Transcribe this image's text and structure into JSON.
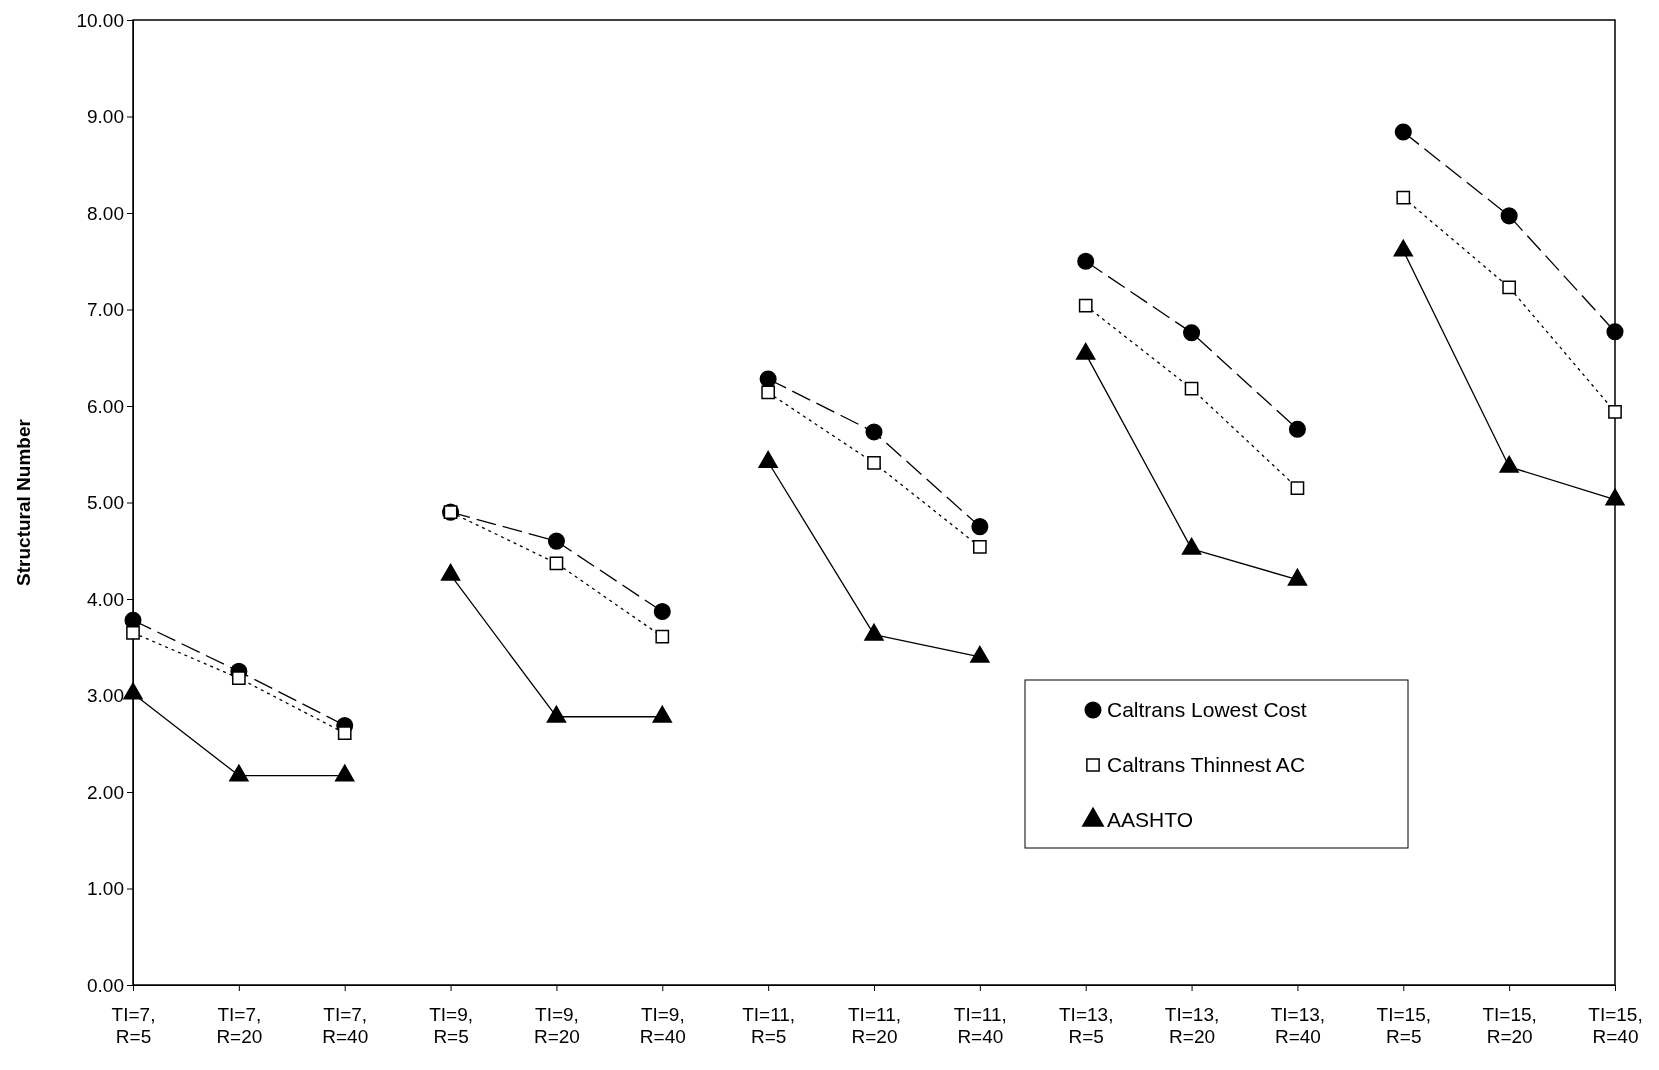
{
  "chart_data": {
    "type": "line",
    "ylabel": "Structural Number",
    "categories": [
      "TI=7, R=5",
      "TI=7, R=20",
      "TI=7, R=40",
      "TI=9, R=5",
      "TI=9, R=20",
      "TI=9, R=40",
      "TI=11, R=5",
      "TI=11, R=20",
      "TI=11, R=40",
      "TI=13, R=5",
      "TI=13, R=20",
      "TI=13, R=40",
      "TI=15, R=5",
      "TI=15, R=20",
      "TI=15, R=40"
    ],
    "ylim": [
      0,
      10
    ],
    "yticks": [
      {
        "value": 0,
        "label": "0.00"
      },
      {
        "value": 1,
        "label": "1.00"
      },
      {
        "value": 2,
        "label": "2.00"
      },
      {
        "value": 3,
        "label": "3.00"
      },
      {
        "value": 4,
        "label": "4.00"
      },
      {
        "value": 5,
        "label": "5.00"
      },
      {
        "value": 6,
        "label": "6.00"
      },
      {
        "value": 7,
        "label": "7.00"
      },
      {
        "value": 8,
        "label": "8.00"
      },
      {
        "value": 9,
        "label": "9.00"
      },
      {
        "value": 10,
        "label": "10.00"
      }
    ],
    "legend": "right",
    "series": [
      {
        "name": "Caltrans Lowest Cost",
        "color": "#000000",
        "marker": "circle",
        "line_style": "dashed",
        "x": [
          "TI=7, R=5",
          "TI=7, R=20",
          "TI=7, R=40"
        ],
        "values": [
          3.78,
          3.25,
          2.69
        ]
      },
      {
        "color": "#000000",
        "marker": "circle",
        "line_style": "dashed",
        "x": [
          "TI=9, R=5",
          "TI=9, R=20",
          "TI=9, R=40"
        ],
        "values": [
          4.9,
          4.6,
          3.87
        ]
      },
      {
        "color": "#000000",
        "marker": "circle",
        "line_style": "dashed",
        "x": [
          "TI=11, R=5",
          "TI=11, R=20",
          "TI=11, R=40"
        ],
        "values": [
          6.28,
          5.73,
          4.75
        ]
      },
      {
        "color": "#000000",
        "marker": "circle",
        "line_style": "dashed",
        "x": [
          "TI=13, R=5",
          "TI=13, R=20",
          "TI=13, R=40"
        ],
        "values": [
          7.5,
          6.76,
          5.76
        ]
      },
      {
        "color": "#000000",
        "marker": "circle",
        "line_style": "dashed",
        "x": [
          "TI=15, R=5",
          "TI=15, R=20",
          "TI=15, R=40"
        ],
        "values": [
          8.84,
          7.97,
          6.77
        ]
      },
      {
        "name": "Caltrans Thinnest AC",
        "color": "#000000",
        "marker": "square",
        "line_style": "dotted",
        "x": [
          "TI=7, R=5",
          "TI=7, R=20",
          "TI=7, R=40"
        ],
        "values": [
          3.65,
          3.18,
          2.61
        ]
      },
      {
        "color": "#000000",
        "marker": "square",
        "line_style": "dotted",
        "x": [
          "TI=9, R=5",
          "TI=9, R=20",
          "TI=9, R=40"
        ],
        "values": [
          4.9,
          4.37,
          3.61
        ]
      },
      {
        "color": "#000000",
        "marker": "square",
        "line_style": "dotted",
        "x": [
          "TI=11, R=5",
          "TI=11, R=20",
          "TI=11, R=40"
        ],
        "values": [
          6.14,
          5.41,
          4.54
        ]
      },
      {
        "color": "#000000",
        "marker": "square",
        "line_style": "dotted",
        "x": [
          "TI=13, R=5",
          "TI=13, R=20",
          "TI=13, R=40"
        ],
        "values": [
          7.04,
          6.18,
          5.15
        ]
      },
      {
        "color": "#000000",
        "marker": "square",
        "line_style": "dotted",
        "x": [
          "TI=15, R=5",
          "TI=15, R=20",
          "TI=15, R=40"
        ],
        "values": [
          8.16,
          7.23,
          5.94
        ]
      },
      {
        "name": "AASHTO",
        "color": "#000000",
        "marker": "triangle",
        "line_style": "solid",
        "x": [
          "TI=7, R=5",
          "TI=7, R=20",
          "TI=7, R=40"
        ],
        "values": [
          3.02,
          2.17,
          2.17
        ]
      },
      {
        "color": "#000000",
        "marker": "triangle",
        "line_style": "solid",
        "x": [
          "TI=9, R=5",
          "TI=9, R=20",
          "TI=9, R=40"
        ],
        "values": [
          4.25,
          2.78,
          2.78
        ]
      },
      {
        "color": "#000000",
        "marker": "triangle",
        "line_style": "solid",
        "x": [
          "TI=11, R=5",
          "TI=11, R=20",
          "TI=11, R=40"
        ],
        "values": [
          5.42,
          3.63,
          3.4
        ]
      },
      {
        "color": "#000000",
        "marker": "triangle",
        "line_style": "solid",
        "x": [
          "TI=13, R=5",
          "TI=13, R=20",
          "TI=13, R=40"
        ],
        "values": [
          6.54,
          4.52,
          4.2
        ]
      },
      {
        "color": "#000000",
        "marker": "triangle",
        "line_style": "solid",
        "x": [
          "TI=15, R=5",
          "TI=15, R=20",
          "TI=15, R=40"
        ],
        "values": [
          7.61,
          5.37,
          5.03
        ]
      }
    ]
  }
}
